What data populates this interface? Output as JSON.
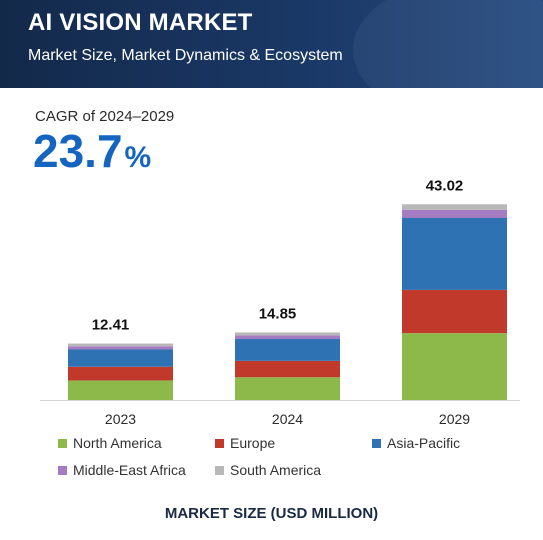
{
  "header": {
    "title": "AI VISION MARKET",
    "subtitle": "Market Size, Market Dynamics & Ecosystem"
  },
  "cagr": {
    "label": "CAGR of 2024–2029",
    "value": "23.7",
    "unit": "%"
  },
  "chart_data": {
    "type": "bar",
    "stacked": true,
    "categories": [
      "2023",
      "2024",
      "2029"
    ],
    "totals": [
      "12.41",
      "14.85",
      "43.02"
    ],
    "series": [
      {
        "name": "North America",
        "color": "#8db84a",
        "values": [
          4.3,
          5.0,
          14.7
        ]
      },
      {
        "name": "Europe",
        "color": "#c0392b",
        "values": [
          3.0,
          3.6,
          9.5
        ]
      },
      {
        "name": "Asia-Pacific",
        "color": "#2f72b3",
        "values": [
          3.8,
          4.8,
          15.8
        ]
      },
      {
        "name": "Middle-East Africa",
        "color": "#a57cc2",
        "values": [
          0.7,
          0.8,
          1.8
        ]
      },
      {
        "name": "South America",
        "color": "#b8b8b8",
        "values": [
          0.61,
          0.65,
          1.22
        ]
      }
    ],
    "legend_position": "bottom",
    "xlabel": "MARKET SIZE (USD MILLION)",
    "ylabel": "",
    "grid": false
  }
}
